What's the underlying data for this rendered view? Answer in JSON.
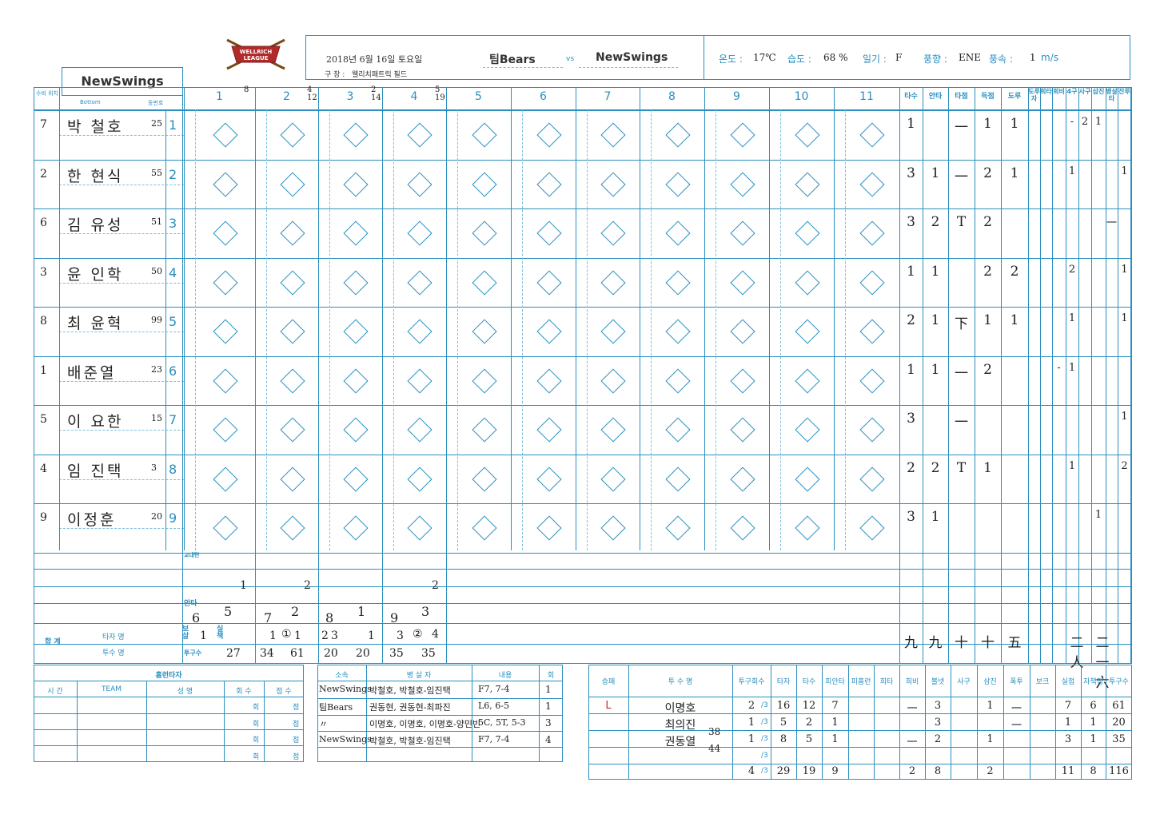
{
  "logo": {
    "text": "WELLRICH LEAGUE"
  },
  "header": {
    "date": "2018년 6월 16일 토요일",
    "stadium_label": "구 장 :",
    "stadium": "웰리치패트릭 필드",
    "away_team": "팀Bears",
    "vs": "vs",
    "home_team": "NewSwings",
    "temp_label": "온도 :",
    "temp_value": "17℃",
    "humidity_label": "습도 :",
    "humidity_value": "68 %",
    "weather_label": "일기 :",
    "weather_value": "F",
    "wind_dir_label": "풍향 :",
    "wind_dir_value": "ENE",
    "wind_speed_label": "풍속 :",
    "wind_speed_value": "1",
    "wind_unit": "m/s"
  },
  "team_box": {
    "name": "NewSwings"
  },
  "col_headers": {
    "position": "수비 위치",
    "bottom": "Bottom",
    "uniform": "등번호",
    "innings": [
      "1",
      "2",
      "3",
      "4",
      "5",
      "6",
      "7",
      "8",
      "9",
      "10",
      "11"
    ],
    "inning_marks": [
      "8",
      "4 12",
      "2 14",
      "5 19",
      "",
      "",
      "",
      "",
      "",
      "",
      ""
    ],
    "stats": [
      "타수",
      "안타",
      "타점",
      "득점",
      "도루",
      "도루자",
      "희타",
      "희비",
      "4구",
      "사구",
      "삼진",
      "병살타",
      "잔루"
    ]
  },
  "batters": [
    {
      "order": "1",
      "pos": "7",
      "name": "박 철호",
      "num": "25",
      "stats": [
        "1",
        "",
        "一",
        "1",
        "1",
        "",
        "",
        "",
        "-",
        "2",
        "1",
        "",
        ""
      ]
    },
    {
      "order": "2",
      "pos": "2",
      "name": "한 현식",
      "num": "55",
      "stats": [
        "3",
        "1",
        "一",
        "2",
        "1",
        "",
        "",
        "",
        "1",
        "",
        "",
        "",
        "1"
      ]
    },
    {
      "order": "3",
      "pos": "6",
      "name": "김 유성",
      "num": "51",
      "stats": [
        "3",
        "2",
        "T",
        "2",
        "",
        "",
        "",
        "",
        "",
        "",
        "",
        "一",
        ""
      ]
    },
    {
      "order": "4",
      "pos": "3",
      "name": "윤 인학",
      "num": "50",
      "stats": [
        "1",
        "1",
        "",
        "2",
        "2",
        "",
        "",
        "",
        "2",
        "",
        "",
        "",
        "1"
      ]
    },
    {
      "order": "5",
      "pos": "8",
      "name": "최 윤혁",
      "num": "99",
      "stats": [
        "2",
        "1",
        "下",
        "1",
        "1",
        "",
        "",
        "",
        "1",
        "",
        "",
        "",
        "1"
      ]
    },
    {
      "order": "6",
      "pos": "1",
      "name": "배준열",
      "num": "23",
      "stats": [
        "1",
        "1",
        "一",
        "2",
        "",
        "",
        "",
        "-",
        "1",
        "",
        "",
        "",
        ""
      ]
    },
    {
      "order": "7",
      "pos": "5",
      "name": "이 요한",
      "num": "15",
      "stats": [
        "3",
        "",
        "一",
        "",
        "",
        "",
        "",
        "",
        "",
        "",
        "",
        "",
        "1"
      ]
    },
    {
      "order": "8",
      "pos": "4",
      "name": "임 진택",
      "num": "3",
      "stats": [
        "2",
        "2",
        "T",
        "1",
        "",
        "",
        "",
        "",
        "1",
        "",
        "",
        "",
        "2"
      ]
    },
    {
      "order": "9",
      "pos": "9",
      "name": "이정훈",
      "num": "20",
      "stats": [
        "3",
        "1",
        "",
        "",
        "",
        "",
        "",
        "",
        "",
        "",
        "1",
        "",
        ""
      ]
    }
  ],
  "inning_totals": {
    "change_label": "교대련",
    "hits_label": "안타",
    "bb_label": "보 살",
    "err_label": "실 책",
    "pitch_label": "투구수",
    "total_label": "합 계",
    "batter_label": "타자 명",
    "pitcher_label": "투수 명",
    "change_vals": [
      "1",
      "2",
      "",
      "2"
    ],
    "hits_vals": [
      "6",
      "5",
      "7",
      "2",
      "8",
      "1",
      "9",
      "3"
    ],
    "bb_vals": [
      "1",
      "1",
      "①",
      "1",
      "2",
      "3",
      "1",
      "3",
      "②",
      "4"
    ],
    "pitch_vals": [
      "27",
      "34",
      "61",
      "20",
      "20",
      "35",
      "35"
    ],
    "stat_totals": [
      "九",
      "九",
      "十",
      "十",
      "五",
      "",
      "",
      "",
      "二人",
      "",
      "二一六"
    ]
  },
  "hr_table": {
    "title": "홈런타자",
    "headers": [
      "시 간",
      "TEAM",
      "성 명",
      "회 수",
      "점 수"
    ],
    "rows": [
      {
        "inning": "회",
        "points": "점"
      },
      {
        "inning": "회",
        "points": "점"
      },
      {
        "inning": "회",
        "points": "점"
      },
      {
        "inning": "회",
        "points": "점"
      }
    ]
  },
  "dp_table": {
    "headers": [
      "소속",
      "병 살 자",
      "내용",
      "회"
    ],
    "rows": [
      {
        "team": "NewSwings",
        "players": "박철호, 박철호-임진택",
        "content": "F7, 7-4",
        "inning": "1"
      },
      {
        "team": "팀Bears",
        "players": "권동현, 권동현-최파진",
        "content": "L6, 6-5",
        "inning": "1"
      },
      {
        "team": "〃",
        "players": "이명호, 이명호, 이명호-양민빈",
        "content": "5C, 5T, 5-3",
        "inning": "3"
      },
      {
        "team": "NewSwings",
        "players": "박철호, 박철호-임진택",
        "content": "F7, 7-4",
        "inning": "4"
      }
    ]
  },
  "pitcher_table": {
    "headers": [
      "승패",
      "투 수 명",
      "투구회수",
      "타자",
      "타수",
      "피안타",
      "피홈런",
      "희타",
      "희비",
      "볼넷",
      "사구",
      "삼진",
      "폭투",
      "보크",
      "실점",
      "자책점",
      "투구수"
    ],
    "rows": [
      {
        "result": "L",
        "name": "이명호",
        "num": "",
        "ip": "2",
        "ip_frac": "/3",
        "bf": "16",
        "ab": "12",
        "h": "7",
        "hr": "",
        "sh": "",
        "sf": "一",
        "bb": "3",
        "hbp": "",
        "so": "1",
        "wp": "一",
        "bk": "",
        "r": "7",
        "er": "6",
        "np": "61"
      },
      {
        "result": "",
        "name": "최의진",
        "num": "38",
        "ip": "1",
        "ip_frac": "/3",
        "bf": "5",
        "ab": "2",
        "h": "1",
        "hr": "",
        "sh": "",
        "sf": "",
        "bb": "3",
        "hbp": "",
        "so": "",
        "wp": "一",
        "bk": "",
        "r": "1",
        "er": "1",
        "np": "20"
      },
      {
        "result": "",
        "name": "권동열",
        "num": "44",
        "ip": "1",
        "ip_frac": "/3",
        "bf": "8",
        "ab": "5",
        "h": "1",
        "hr": "",
        "sh": "",
        "sf": "一",
        "bb": "2",
        "hbp": "",
        "so": "1",
        "wp": "",
        "bk": "",
        "r": "3",
        "er": "1",
        "np": "35"
      },
      {
        "result": "",
        "name": "",
        "num": "",
        "ip": "",
        "ip_frac": "/3",
        "bf": "",
        "ab": "",
        "h": "",
        "hr": "",
        "sh": "",
        "sf": "",
        "bb": "",
        "hbp": "",
        "so": "",
        "wp": "",
        "bk": "",
        "r": "",
        "er": "",
        "np": ""
      }
    ],
    "total": {
      "ip": "4",
      "ip_frac": "/3",
      "bf": "29",
      "ab": "19",
      "h": "9",
      "sf": "2",
      "bb": "8",
      "so": "2",
      "r": "11",
      "er": "8",
      "np": "116"
    }
  },
  "colors": {
    "line": "#2a8fbf",
    "ink": "#222222",
    "red": "#c0302f"
  }
}
